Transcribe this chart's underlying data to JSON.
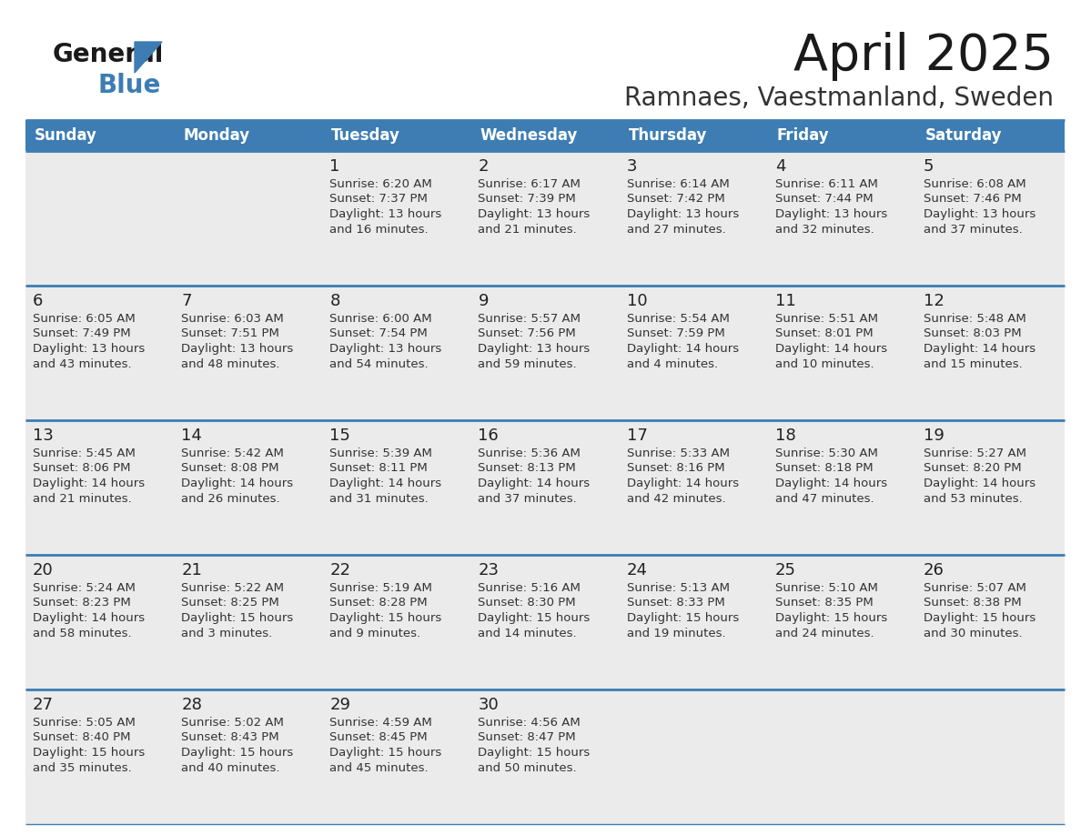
{
  "title": "April 2025",
  "subtitle": "Ramnaes, Vaestmanland, Sweden",
  "days_of_week": [
    "Sunday",
    "Monday",
    "Tuesday",
    "Wednesday",
    "Thursday",
    "Friday",
    "Saturday"
  ],
  "header_bg": "#3D7DB3",
  "header_text_color": "#FFFFFF",
  "row_bg": "#EBEBEB",
  "row_sep_color": "#3D7DB3",
  "day_number_color": "#222222",
  "content_color": "#333333",
  "title_color": "#1a1a1a",
  "subtitle_color": "#333333",
  "logo_general_color": "#1a1a1a",
  "logo_blue_color": "#3D7DB3",
  "calendar": [
    [
      {
        "day": "",
        "info": ""
      },
      {
        "day": "",
        "info": ""
      },
      {
        "day": "1",
        "info": "Sunrise: 6:20 AM\nSunset: 7:37 PM\nDaylight: 13 hours\nand 16 minutes."
      },
      {
        "day": "2",
        "info": "Sunrise: 6:17 AM\nSunset: 7:39 PM\nDaylight: 13 hours\nand 21 minutes."
      },
      {
        "day": "3",
        "info": "Sunrise: 6:14 AM\nSunset: 7:42 PM\nDaylight: 13 hours\nand 27 minutes."
      },
      {
        "day": "4",
        "info": "Sunrise: 6:11 AM\nSunset: 7:44 PM\nDaylight: 13 hours\nand 32 minutes."
      },
      {
        "day": "5",
        "info": "Sunrise: 6:08 AM\nSunset: 7:46 PM\nDaylight: 13 hours\nand 37 minutes."
      }
    ],
    [
      {
        "day": "6",
        "info": "Sunrise: 6:05 AM\nSunset: 7:49 PM\nDaylight: 13 hours\nand 43 minutes."
      },
      {
        "day": "7",
        "info": "Sunrise: 6:03 AM\nSunset: 7:51 PM\nDaylight: 13 hours\nand 48 minutes."
      },
      {
        "day": "8",
        "info": "Sunrise: 6:00 AM\nSunset: 7:54 PM\nDaylight: 13 hours\nand 54 minutes."
      },
      {
        "day": "9",
        "info": "Sunrise: 5:57 AM\nSunset: 7:56 PM\nDaylight: 13 hours\nand 59 minutes."
      },
      {
        "day": "10",
        "info": "Sunrise: 5:54 AM\nSunset: 7:59 PM\nDaylight: 14 hours\nand 4 minutes."
      },
      {
        "day": "11",
        "info": "Sunrise: 5:51 AM\nSunset: 8:01 PM\nDaylight: 14 hours\nand 10 minutes."
      },
      {
        "day": "12",
        "info": "Sunrise: 5:48 AM\nSunset: 8:03 PM\nDaylight: 14 hours\nand 15 minutes."
      }
    ],
    [
      {
        "day": "13",
        "info": "Sunrise: 5:45 AM\nSunset: 8:06 PM\nDaylight: 14 hours\nand 21 minutes."
      },
      {
        "day": "14",
        "info": "Sunrise: 5:42 AM\nSunset: 8:08 PM\nDaylight: 14 hours\nand 26 minutes."
      },
      {
        "day": "15",
        "info": "Sunrise: 5:39 AM\nSunset: 8:11 PM\nDaylight: 14 hours\nand 31 minutes."
      },
      {
        "day": "16",
        "info": "Sunrise: 5:36 AM\nSunset: 8:13 PM\nDaylight: 14 hours\nand 37 minutes."
      },
      {
        "day": "17",
        "info": "Sunrise: 5:33 AM\nSunset: 8:16 PM\nDaylight: 14 hours\nand 42 minutes."
      },
      {
        "day": "18",
        "info": "Sunrise: 5:30 AM\nSunset: 8:18 PM\nDaylight: 14 hours\nand 47 minutes."
      },
      {
        "day": "19",
        "info": "Sunrise: 5:27 AM\nSunset: 8:20 PM\nDaylight: 14 hours\nand 53 minutes."
      }
    ],
    [
      {
        "day": "20",
        "info": "Sunrise: 5:24 AM\nSunset: 8:23 PM\nDaylight: 14 hours\nand 58 minutes."
      },
      {
        "day": "21",
        "info": "Sunrise: 5:22 AM\nSunset: 8:25 PM\nDaylight: 15 hours\nand 3 minutes."
      },
      {
        "day": "22",
        "info": "Sunrise: 5:19 AM\nSunset: 8:28 PM\nDaylight: 15 hours\nand 9 minutes."
      },
      {
        "day": "23",
        "info": "Sunrise: 5:16 AM\nSunset: 8:30 PM\nDaylight: 15 hours\nand 14 minutes."
      },
      {
        "day": "24",
        "info": "Sunrise: 5:13 AM\nSunset: 8:33 PM\nDaylight: 15 hours\nand 19 minutes."
      },
      {
        "day": "25",
        "info": "Sunrise: 5:10 AM\nSunset: 8:35 PM\nDaylight: 15 hours\nand 24 minutes."
      },
      {
        "day": "26",
        "info": "Sunrise: 5:07 AM\nSunset: 8:38 PM\nDaylight: 15 hours\nand 30 minutes."
      }
    ],
    [
      {
        "day": "27",
        "info": "Sunrise: 5:05 AM\nSunset: 8:40 PM\nDaylight: 15 hours\nand 35 minutes."
      },
      {
        "day": "28",
        "info": "Sunrise: 5:02 AM\nSunset: 8:43 PM\nDaylight: 15 hours\nand 40 minutes."
      },
      {
        "day": "29",
        "info": "Sunrise: 4:59 AM\nSunset: 8:45 PM\nDaylight: 15 hours\nand 45 minutes."
      },
      {
        "day": "30",
        "info": "Sunrise: 4:56 AM\nSunset: 8:47 PM\nDaylight: 15 hours\nand 50 minutes."
      },
      {
        "day": "",
        "info": ""
      },
      {
        "day": "",
        "info": ""
      },
      {
        "day": "",
        "info": ""
      }
    ]
  ]
}
